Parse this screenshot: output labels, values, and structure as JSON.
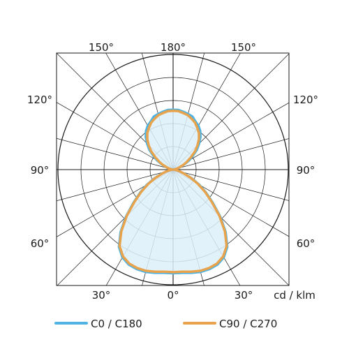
{
  "chart_data": {
    "type": "polar",
    "unit": "cd / klm",
    "angle_labels": {
      "top": [
        "150°",
        "180°",
        "150°"
      ],
      "left": [
        "120°",
        "90°",
        "60°"
      ],
      "right": [
        "120°",
        "90°",
        "60°"
      ],
      "bottom": [
        "30°",
        "0°",
        "30°"
      ]
    },
    "radial_range": [
      0,
      1
    ],
    "grid": true,
    "series": [
      {
        "name": "C0 / C180",
        "color": "#4fb3e3",
        "fill": "#dcf0fa",
        "angles_deg": [
          0,
          5,
          10,
          15,
          20,
          25,
          30,
          35,
          40,
          45,
          50,
          55,
          60,
          65,
          70,
          75,
          80,
          85,
          90,
          95,
          100,
          105,
          110,
          115,
          120,
          125,
          130,
          135,
          140,
          145,
          150,
          155,
          160,
          165,
          170,
          175,
          180
        ],
        "values": [
          0.9,
          0.9,
          0.91,
          0.92,
          0.92,
          0.91,
          0.88,
          0.82,
          0.71,
          0.58,
          0.45,
          0.35,
          0.26,
          0.18,
          0.11,
          0.06,
          0.03,
          0.01,
          0.0,
          0.01,
          0.02,
          0.04,
          0.07,
          0.11,
          0.16,
          0.21,
          0.27,
          0.32,
          0.37,
          0.41,
          0.44,
          0.46,
          0.49,
          0.5,
          0.51,
          0.52,
          0.52
        ]
      },
      {
        "name": "C90 / C270",
        "color": "#e8a34c",
        "fill": "none",
        "angles_deg": [
          0,
          5,
          10,
          15,
          20,
          25,
          30,
          35,
          40,
          45,
          50,
          55,
          60,
          65,
          70,
          75,
          80,
          85,
          90,
          95,
          100,
          105,
          110,
          115,
          120,
          125,
          130,
          135,
          140,
          145,
          150,
          155,
          160,
          165,
          170,
          175,
          180
        ],
        "values": [
          0.89,
          0.89,
          0.9,
          0.91,
          0.91,
          0.9,
          0.87,
          0.81,
          0.7,
          0.57,
          0.44,
          0.34,
          0.25,
          0.17,
          0.1,
          0.06,
          0.03,
          0.01,
          0.0,
          0.01,
          0.02,
          0.04,
          0.06,
          0.1,
          0.14,
          0.19,
          0.25,
          0.3,
          0.35,
          0.39,
          0.42,
          0.45,
          0.47,
          0.49,
          0.5,
          0.51,
          0.51
        ]
      }
    ],
    "legend_position": "bottom"
  }
}
